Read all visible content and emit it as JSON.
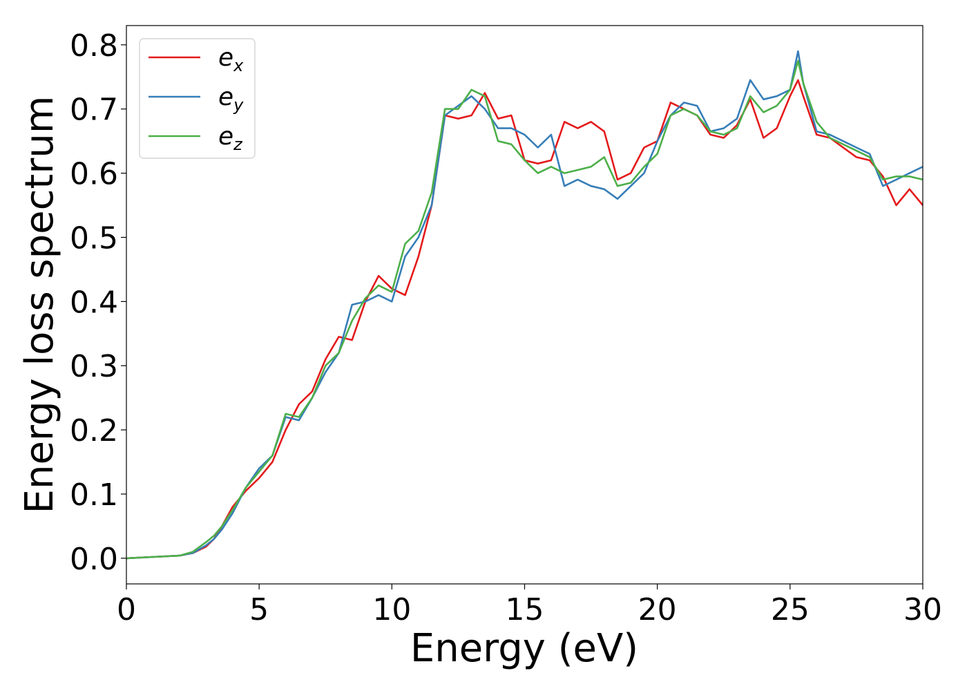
{
  "chart_data": {
    "type": "line",
    "xlabel": "Energy (eV)",
    "ylabel": "Energy loss spectrum",
    "xlim": [
      0,
      30
    ],
    "ylim": [
      -0.04,
      0.83
    ],
    "xticks": [
      0,
      5,
      10,
      15,
      20,
      25,
      30
    ],
    "xtick_labels": [
      "0",
      "5",
      "10",
      "15",
      "20",
      "25",
      "30"
    ],
    "yticks": [
      0.0,
      0.1,
      0.2,
      0.3,
      0.4,
      0.5,
      0.6,
      0.7,
      0.8
    ],
    "ytick_labels": [
      "0.0",
      "0.1",
      "0.2",
      "0.3",
      "0.4",
      "0.5",
      "0.6",
      "0.7",
      "0.8"
    ],
    "grid": false,
    "legend_position": "top-left",
    "series": [
      {
        "name": "e_x",
        "label_base": "e",
        "label_sub": "x",
        "color": "#e41a1c",
        "x": [
          0,
          1,
          2,
          2.5,
          3,
          3.3,
          3.6,
          4,
          4.5,
          5,
          5.5,
          6,
          6.5,
          7,
          7.5,
          8,
          8.5,
          9,
          9.5,
          10,
          10.5,
          11,
          11.5,
          12,
          12.5,
          13,
          13.5,
          14,
          14.5,
          15,
          15.5,
          16,
          16.5,
          17,
          17.5,
          18,
          18.5,
          19,
          19.5,
          20,
          20.5,
          21,
          21.5,
          22,
          22.5,
          23,
          23.5,
          24,
          24.5,
          25,
          25.3,
          25.5,
          26,
          26.5,
          27,
          27.5,
          28,
          28.5,
          29,
          29.5,
          30
        ],
        "y": [
          0.0,
          0.002,
          0.004,
          0.008,
          0.018,
          0.03,
          0.05,
          0.08,
          0.105,
          0.125,
          0.15,
          0.2,
          0.24,
          0.26,
          0.31,
          0.345,
          0.34,
          0.4,
          0.44,
          0.42,
          0.41,
          0.47,
          0.55,
          0.69,
          0.685,
          0.69,
          0.725,
          0.685,
          0.69,
          0.62,
          0.615,
          0.62,
          0.68,
          0.67,
          0.68,
          0.665,
          0.59,
          0.6,
          0.64,
          0.65,
          0.71,
          0.7,
          0.69,
          0.66,
          0.655,
          0.675,
          0.715,
          0.655,
          0.67,
          0.72,
          0.745,
          0.72,
          0.66,
          0.655,
          0.64,
          0.625,
          0.62,
          0.595,
          0.55,
          0.575,
          0.55
        ]
      },
      {
        "name": "e_y",
        "label_base": "e",
        "label_sub": "y",
        "color": "#377eb8",
        "x": [
          0,
          1,
          2,
          2.5,
          3,
          3.3,
          3.6,
          4,
          4.5,
          5,
          5.5,
          6,
          6.5,
          7,
          7.5,
          8,
          8.5,
          9,
          9.5,
          10,
          10.5,
          11,
          11.5,
          12,
          12.5,
          13,
          13.5,
          14,
          14.5,
          15,
          15.5,
          16,
          16.5,
          17,
          17.5,
          18,
          18.5,
          19,
          19.5,
          20,
          20.5,
          21,
          21.5,
          22,
          22.5,
          23,
          23.5,
          24,
          24.5,
          25,
          25.3,
          25.5,
          26,
          26.5,
          27,
          27.5,
          28,
          28.5,
          29,
          29.5,
          30
        ],
        "y": [
          0.0,
          0.002,
          0.004,
          0.008,
          0.02,
          0.03,
          0.045,
          0.07,
          0.11,
          0.14,
          0.16,
          0.22,
          0.215,
          0.25,
          0.29,
          0.32,
          0.395,
          0.4,
          0.41,
          0.4,
          0.47,
          0.5,
          0.55,
          0.69,
          0.705,
          0.72,
          0.7,
          0.67,
          0.67,
          0.66,
          0.64,
          0.66,
          0.58,
          0.59,
          0.58,
          0.575,
          0.56,
          0.58,
          0.6,
          0.65,
          0.69,
          0.71,
          0.705,
          0.665,
          0.67,
          0.685,
          0.745,
          0.715,
          0.72,
          0.73,
          0.79,
          0.74,
          0.665,
          0.66,
          0.65,
          0.64,
          0.63,
          0.58,
          0.59,
          0.6,
          0.61
        ]
      },
      {
        "name": "e_z",
        "label_base": "e",
        "label_sub": "z",
        "color": "#4daf4a",
        "x": [
          0,
          1,
          2,
          2.5,
          3,
          3.3,
          3.6,
          4,
          4.5,
          5,
          5.5,
          6,
          6.5,
          7,
          7.5,
          8,
          8.5,
          9,
          9.5,
          10,
          10.5,
          11,
          11.5,
          12,
          12.5,
          13,
          13.5,
          14,
          14.5,
          15,
          15.5,
          16,
          16.5,
          17,
          17.5,
          18,
          18.5,
          19,
          19.5,
          20,
          20.5,
          21,
          21.5,
          22,
          22.5,
          23,
          23.5,
          24,
          24.5,
          25,
          25.3,
          25.5,
          26,
          26.5,
          27,
          27.5,
          28,
          28.5,
          29,
          29.5,
          30
        ],
        "y": [
          0.0,
          0.002,
          0.004,
          0.01,
          0.025,
          0.035,
          0.05,
          0.075,
          0.11,
          0.135,
          0.16,
          0.225,
          0.22,
          0.25,
          0.3,
          0.32,
          0.37,
          0.405,
          0.425,
          0.415,
          0.49,
          0.51,
          0.57,
          0.7,
          0.7,
          0.73,
          0.72,
          0.65,
          0.645,
          0.62,
          0.6,
          0.61,
          0.6,
          0.605,
          0.61,
          0.625,
          0.58,
          0.585,
          0.61,
          0.63,
          0.69,
          0.7,
          0.69,
          0.665,
          0.66,
          0.67,
          0.72,
          0.695,
          0.705,
          0.73,
          0.775,
          0.74,
          0.68,
          0.655,
          0.645,
          0.635,
          0.625,
          0.59,
          0.595,
          0.595,
          0.59
        ]
      }
    ]
  }
}
